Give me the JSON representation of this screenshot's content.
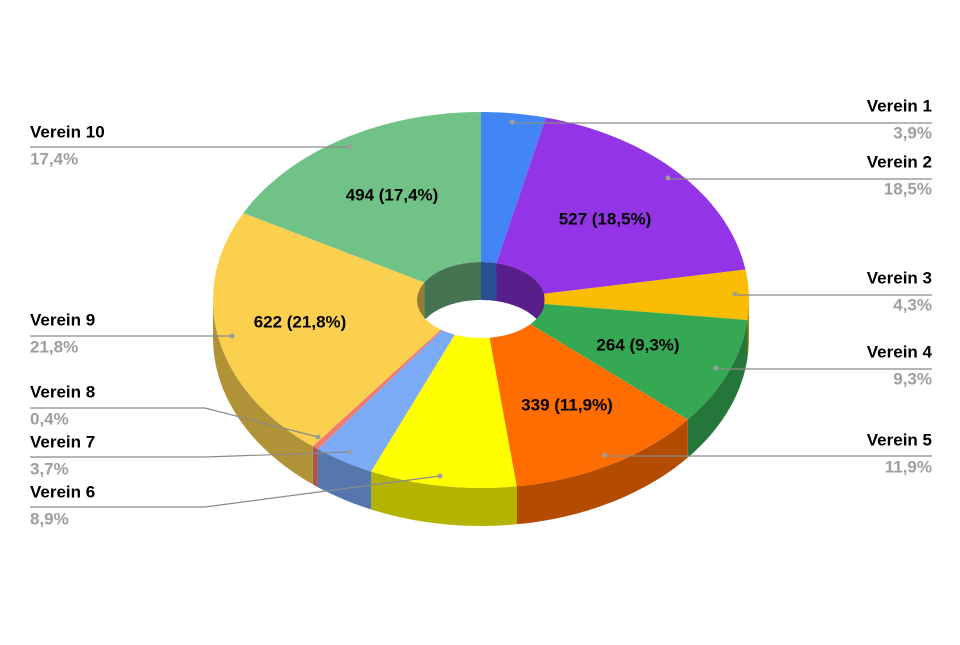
{
  "chart_data": {
    "type": "donut3d",
    "categories": [
      "Verein 1",
      "Verein 2",
      "Verein 3",
      "Verein 4",
      "Verein 5",
      "Verein 6",
      "Verein 7",
      "Verein 8",
      "Verein 9",
      "Verein 10"
    ],
    "values": [
      111,
      527,
      122,
      264,
      339,
      252,
      105,
      11,
      622,
      494
    ],
    "value_labels": [
      null,
      "527 (18,5%)",
      null,
      "264 (9,3%)",
      "339 (11,9%)",
      null,
      null,
      null,
      "622 (21,8%)",
      "494 (17,4%)"
    ],
    "percent_labels": [
      "3,9%",
      "18,5%",
      "4,3%",
      "9,3%",
      "11,9%",
      "8,9%",
      "3,7%",
      "0,4%",
      "21,8%",
      "17,4%"
    ],
    "colors": [
      "#4285f4",
      "#9334e6",
      "#fbbc04",
      "#34a853",
      "#ff6d01",
      "#ffff00",
      "#7baaf7",
      "#f07b72",
      "#fcd04f",
      "#71c287"
    ]
  }
}
